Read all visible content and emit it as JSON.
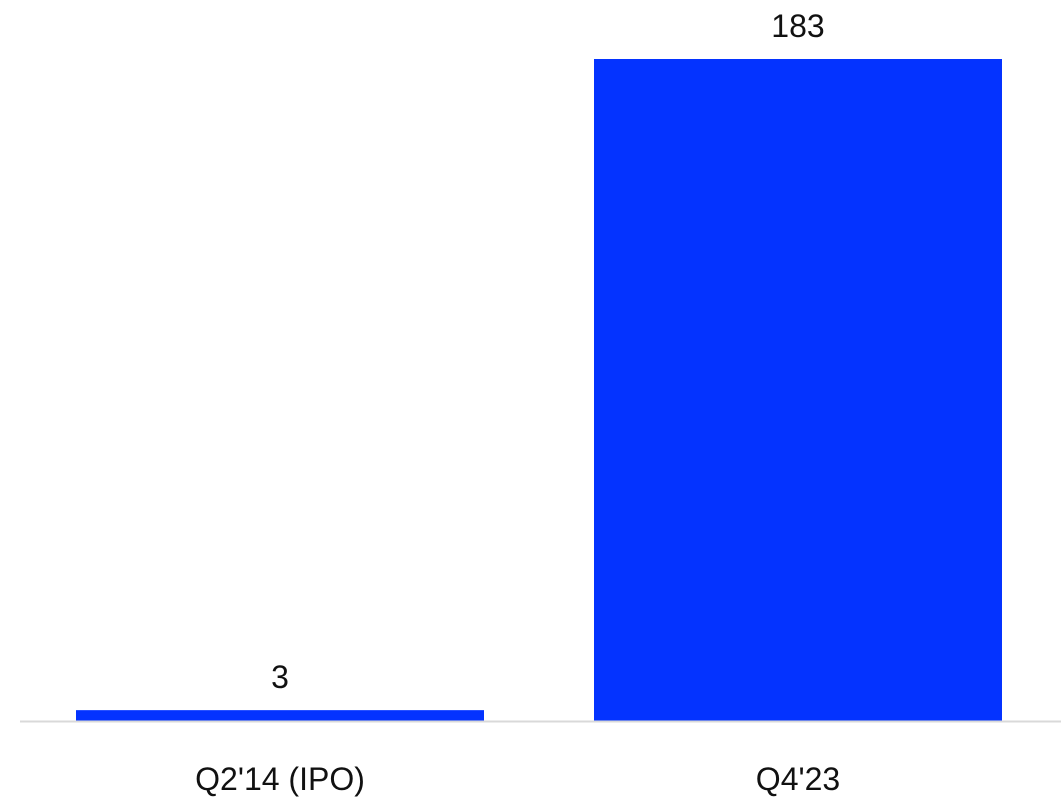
{
  "chart_data": {
    "type": "bar",
    "categories": [
      "Q2'14 (IPO)",
      "Q4'23"
    ],
    "values": [
      3,
      183
    ],
    "value_labels": [
      "3",
      "183"
    ],
    "title": "",
    "xlabel": "",
    "ylabel": "",
    "ylim": [
      0,
      183
    ],
    "grid": false,
    "legend": "none",
    "colors": {
      "bar": "#0433FF",
      "baseline": "#D9D9D9"
    }
  }
}
